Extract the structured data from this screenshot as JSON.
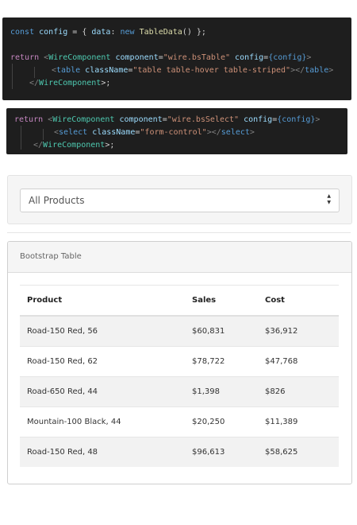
{
  "code_block_1": {
    "line1": {
      "kw": "const",
      "id": "config",
      "p1": " = { ",
      "key": "data",
      "p2": ": ",
      "kw_new": "new",
      "fn": "TableData",
      "p3": "() };"
    },
    "line3": {
      "ret": "return",
      "lt": "<",
      "tag": "WireComponent",
      "attr1": "component",
      "eq": "=",
      "str1": "\"wire.bsTable\"",
      "attr2": "config",
      "val2": "{config}",
      "gt": ">"
    },
    "line4": {
      "lt": "<",
      "tag": "table",
      "attr": "className",
      "str": "\"table table-hover table-striped\"",
      "close": "></",
      "tag_end": "table",
      "gt": ">"
    },
    "line5": {
      "lt": "</",
      "tag": "WireComponent",
      "gt": ">;"
    }
  },
  "code_block_2": {
    "line1": {
      "ret": "return",
      "lt": "<",
      "tag": "WireComponent",
      "attr1": "component",
      "str1": "\"wire.bsSelect\"",
      "attr2": "config",
      "val2": "{config}",
      "gt": ">"
    },
    "line2": {
      "lt": "<",
      "tag": "select",
      "attr": "className",
      "str": "\"form-control\"",
      "close": "></",
      "tag_end": "select",
      "gt": ">"
    },
    "line3": {
      "lt": "</",
      "tag": "WireComponent",
      "gt": ">;"
    }
  },
  "select": {
    "value": "All Products",
    "caret_up": "▲",
    "caret_down": "▼"
  },
  "table": {
    "title": "Bootstrap Table",
    "headers": [
      "Product",
      "Sales",
      "Cost"
    ],
    "rows": [
      [
        "Road-150 Red, 56",
        "$60,831",
        "$36,912"
      ],
      [
        "Road-150 Red, 62",
        "$78,722",
        "$47,768"
      ],
      [
        "Road-650 Red, 44",
        "$1,398",
        "$826"
      ],
      [
        "Mountain-100 Black, 44",
        "$20,250",
        "$11,389"
      ],
      [
        "Road-150 Red, 48",
        "$96,613",
        "$58,625"
      ]
    ]
  }
}
